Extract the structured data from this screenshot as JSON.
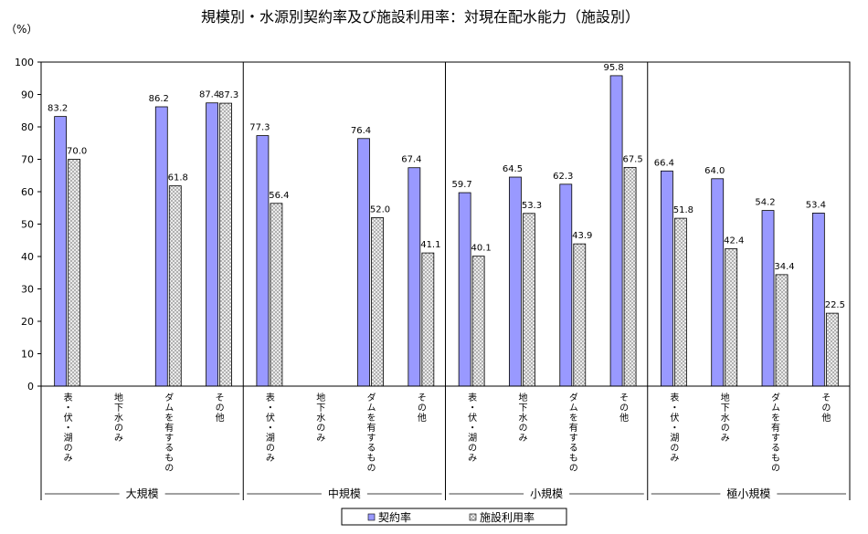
{
  "chart_data": {
    "type": "bar",
    "title": "規模別・水源別契約率及び施設利用率：対現在配水能力（施設別）",
    "ylabel": "（%）",
    "ylim": [
      0,
      100
    ],
    "yticks": [
      0,
      10,
      20,
      30,
      40,
      50,
      60,
      70,
      80,
      90,
      100
    ],
    "grid": false,
    "legend_position": "bottom",
    "groups": [
      {
        "name": "大規模",
        "categories": [
          "表・伏・湖のみ",
          "地下水のみ",
          "ダムを有するもの",
          "その他"
        ]
      },
      {
        "name": "中規模",
        "categories": [
          "表・伏・湖のみ",
          "地下水のみ",
          "ダムを有するもの",
          "その他"
        ]
      },
      {
        "name": "小規模",
        "categories": [
          "表・伏・湖のみ",
          "地下水のみ",
          "ダムを有するもの",
          "その他"
        ]
      },
      {
        "name": "極小規模",
        "categories": [
          "表・伏・湖のみ",
          "地下水のみ",
          "ダムを有するもの",
          "その他"
        ]
      }
    ],
    "series": [
      {
        "name": "契約率",
        "color": "#9999ff",
        "values": [
          83.2,
          null,
          86.2,
          87.4,
          77.3,
          null,
          76.4,
          67.4,
          59.7,
          64.5,
          62.3,
          95.8,
          66.4,
          64.0,
          54.2,
          53.4
        ]
      },
      {
        "name": "施設利用率",
        "color": "#e8e8e8",
        "pattern": "crosshatch",
        "values": [
          70.0,
          null,
          61.8,
          87.3,
          56.4,
          null,
          52.0,
          41.1,
          40.1,
          53.3,
          43.9,
          67.5,
          51.8,
          42.4,
          34.4,
          22.5
        ]
      }
    ]
  }
}
